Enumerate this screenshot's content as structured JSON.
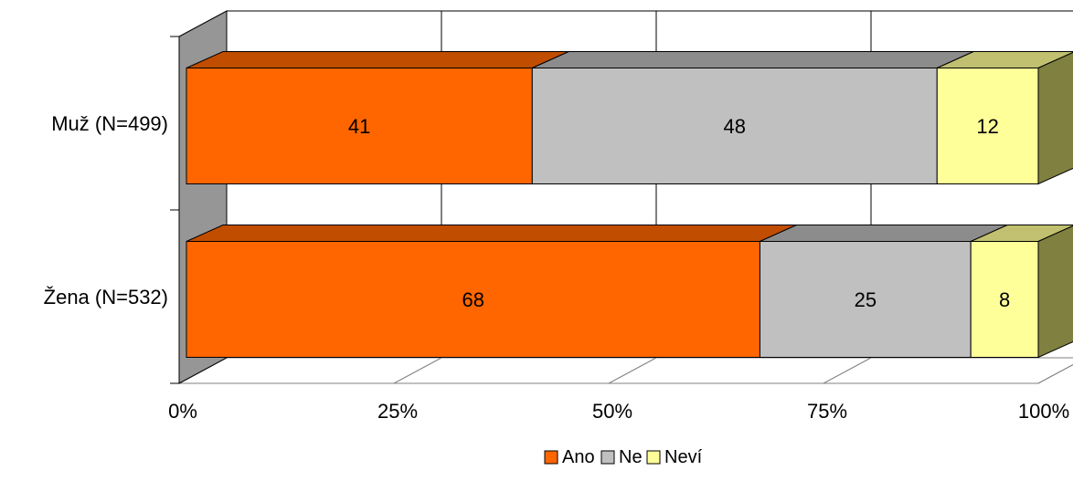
{
  "chart_data": {
    "type": "bar",
    "orientation": "horizontal",
    "stacked": true,
    "percent_stacked": true,
    "style_3d": true,
    "categories": [
      "Muž (N=499)",
      "Žena (N=532)"
    ],
    "series": [
      {
        "name": "Ano",
        "values": [
          41,
          68
        ],
        "color": "#ff6600",
        "top_color": "#c04d00",
        "side_color": "#a84300"
      },
      {
        "name": "Ne",
        "values": [
          48,
          25
        ],
        "color": "#c0c0c0",
        "top_color": "#8c8c8c",
        "side_color": "#808080"
      },
      {
        "name": "Neví",
        "values": [
          12,
          8
        ],
        "color": "#ffff99",
        "top_color": "#c0c070",
        "side_color": "#808040"
      }
    ],
    "x_ticks": [
      "0%",
      "25%",
      "50%",
      "75%",
      "100%"
    ],
    "xlim": [
      0,
      100
    ],
    "grid": true,
    "legend_position": "bottom"
  }
}
